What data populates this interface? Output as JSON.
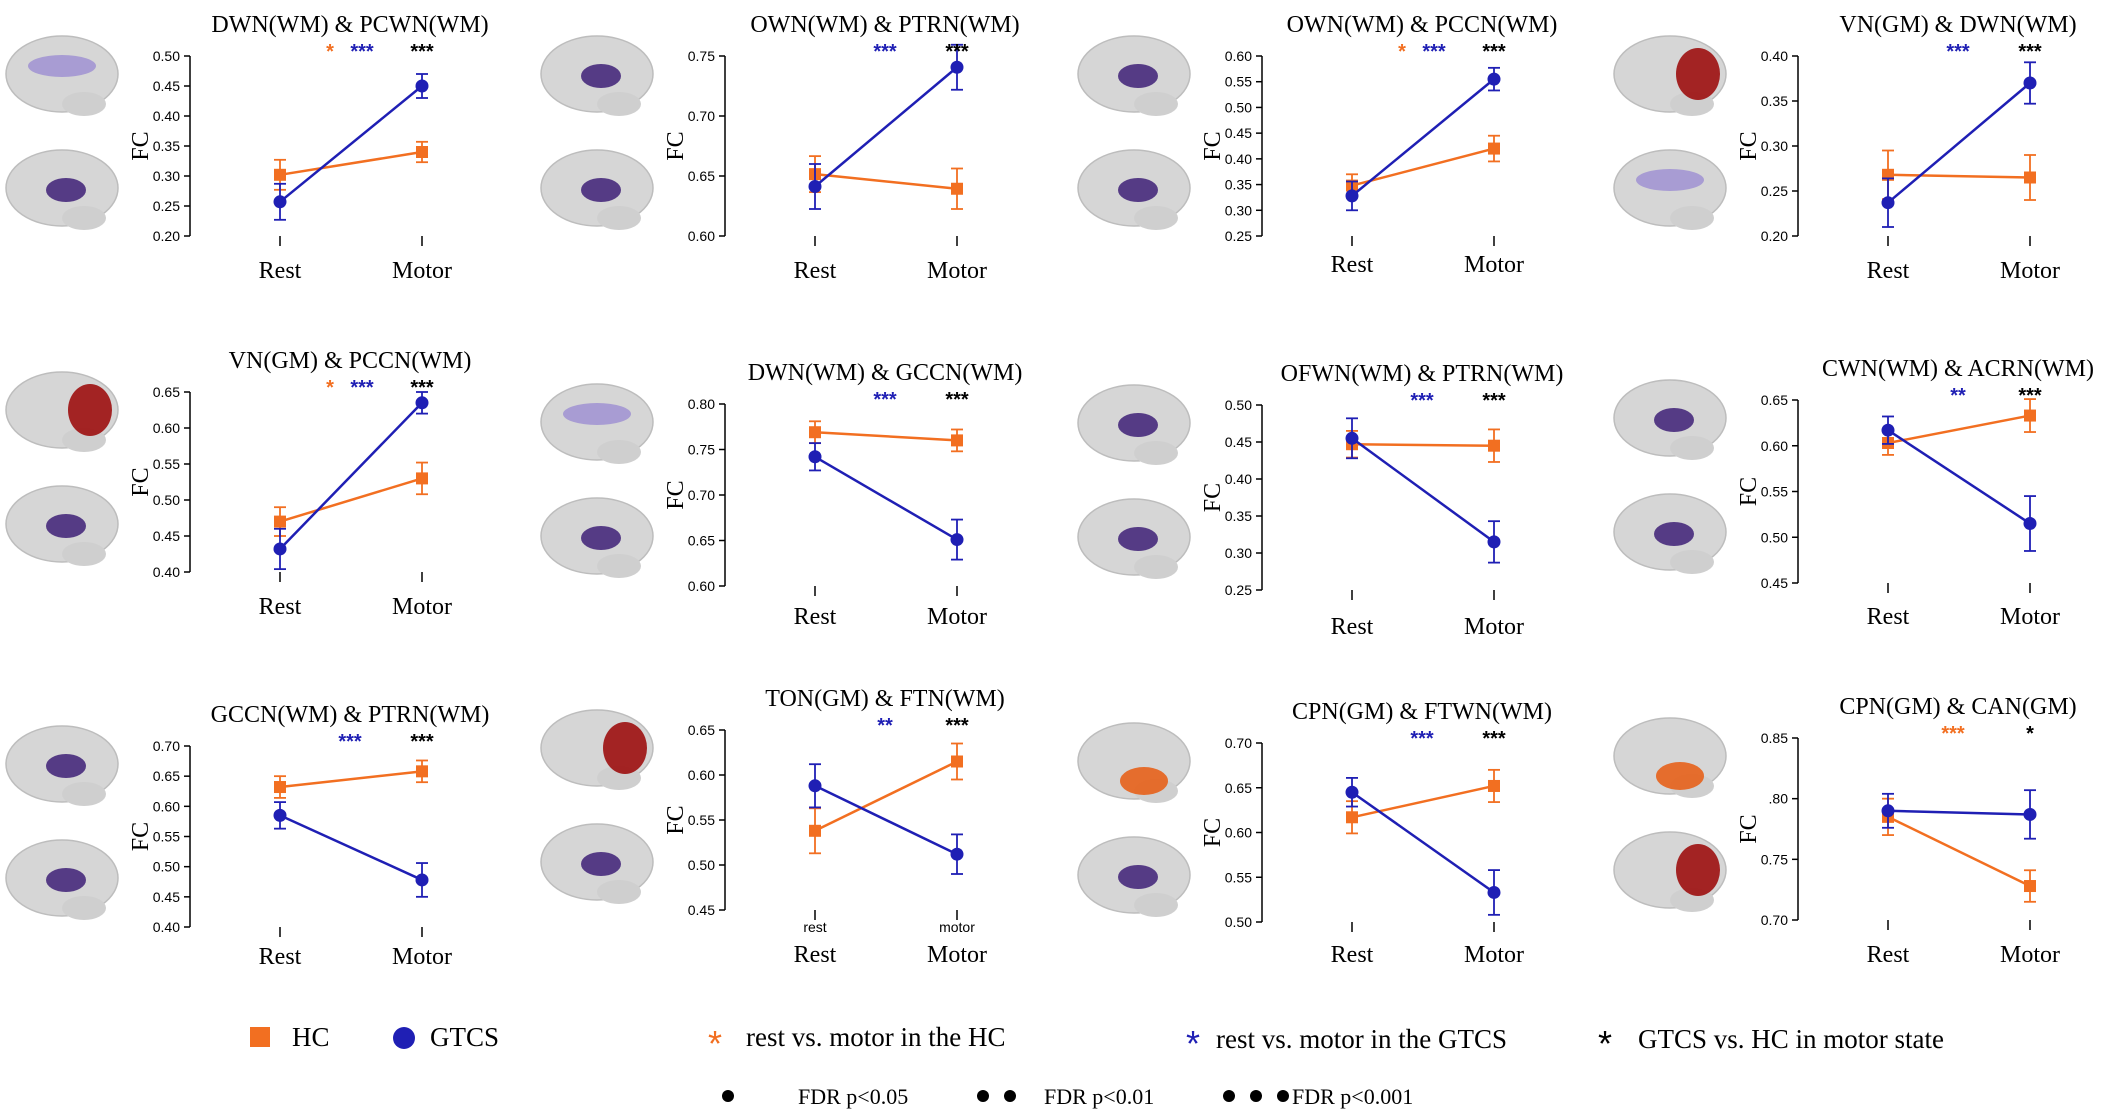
{
  "colors": {
    "hc": "#f26f21",
    "gtcs": "#1f1fb4",
    "sig_black": "#000000",
    "brain_shell": "#c9c9c9",
    "roi_purple_dark": "#4a2e7e",
    "roi_purple_light": "#a497d2",
    "roi_red": "#9e1414",
    "roi_orange": "#e6641e"
  },
  "legend": {
    "hc_label": "HC",
    "gtcs_label": "GTCS",
    "star_hc_label": "rest vs. motor in the HC",
    "star_gtcs_label": "rest vs. motor in the GTCS",
    "star_black_label": "GTCS vs. HC in motor state",
    "star_glyph": "*",
    "dot_glyph": "●",
    "fdr_005": "FDR p<0.05",
    "fdr_001": "FDR p<0.01",
    "fdr_0001": "FDR p<0.001"
  },
  "chart_data": [
    {
      "type": "line",
      "title": "DWN(WM) & PCWN(WM)",
      "ylabel": "FC",
      "categories": [
        "Rest",
        "Motor"
      ],
      "ylim": [
        0.2,
        0.5
      ],
      "yticks": [
        "0.20",
        "0.25",
        "0.30",
        "0.35",
        "0.40",
        "0.45",
        "0.50"
      ],
      "series": [
        {
          "name": "HC",
          "values": [
            0.302,
            0.34
          ],
          "errors": [
            0.025,
            0.017
          ]
        },
        {
          "name": "GTCS",
          "values": [
            0.257,
            0.45
          ],
          "errors": [
            0.03,
            0.02
          ]
        }
      ],
      "annotations": [
        {
          "text": "*",
          "color": "hc"
        },
        {
          "text": "***",
          "color": "gtcs"
        },
        {
          "text": "***",
          "color": "sig_black"
        }
      ],
      "brains": [
        "purple-light",
        "purple-dark"
      ]
    },
    {
      "type": "line",
      "title": "OWN(WM) & PTRN(WM)",
      "ylabel": "FC",
      "categories": [
        "Rest",
        "Motor"
      ],
      "ylim": [
        0.6,
        0.76
      ],
      "yticks": [
        "0.60",
        "0.65",
        "0.70",
        "0.75"
      ],
      "series": [
        {
          "name": "HC",
          "values": [
            0.655,
            0.642
          ],
          "errors": [
            0.016,
            0.018
          ]
        },
        {
          "name": "GTCS",
          "values": [
            0.644,
            0.75
          ],
          "errors": [
            0.02,
            0.02
          ]
        }
      ],
      "annotations": [
        {
          "text": "",
          "color": "hc"
        },
        {
          "text": "***",
          "color": "gtcs"
        },
        {
          "text": "***",
          "color": "sig_black"
        }
      ],
      "brains": [
        "purple-dark",
        "purple-dark"
      ]
    },
    {
      "type": "line",
      "title": "OWN(WM) & PCCN(WM)",
      "ylabel": "FC",
      "categories": [
        "Rest",
        "Motor"
      ],
      "ylim": [
        0.25,
        0.6
      ],
      "yticks": [
        "0.25",
        "0.30",
        "0.35",
        "0.40",
        "0.45",
        "0.50",
        "0.55",
        "0.60"
      ],
      "series": [
        {
          "name": "HC",
          "values": [
            0.348,
            0.42
          ],
          "errors": [
            0.022,
            0.025
          ]
        },
        {
          "name": "GTCS",
          "values": [
            0.328,
            0.555
          ],
          "errors": [
            0.028,
            0.022
          ]
        }
      ],
      "annotations": [
        {
          "text": "*",
          "color": "hc"
        },
        {
          "text": "***",
          "color": "gtcs"
        },
        {
          "text": "***",
          "color": "sig_black"
        }
      ],
      "brains": [
        "purple-dark",
        "purple-dark"
      ]
    },
    {
      "type": "line",
      "title": "VN(GM) & DWN(WM)",
      "ylabel": "FC",
      "categories": [
        "Rest",
        "Motor"
      ],
      "ylim": [
        0.2,
        0.4
      ],
      "yticks": [
        "0.20",
        "0.25",
        "0.30",
        "0.35",
        "0.40"
      ],
      "series": [
        {
          "name": "HC",
          "values": [
            0.268,
            0.265
          ],
          "errors": [
            0.027,
            0.025
          ]
        },
        {
          "name": "GTCS",
          "values": [
            0.237,
            0.37
          ],
          "errors": [
            0.027,
            0.023
          ]
        }
      ],
      "annotations": [
        {
          "text": "",
          "color": "hc"
        },
        {
          "text": "***",
          "color": "gtcs"
        },
        {
          "text": "***",
          "color": "sig_black"
        }
      ],
      "brains": [
        "red",
        "purple-light"
      ]
    },
    {
      "type": "line",
      "title": "VN(GM) & PCCN(WM)",
      "ylabel": "FC",
      "categories": [
        "Rest",
        "Motor"
      ],
      "ylim": [
        0.4,
        0.65
      ],
      "yticks": [
        "0.40",
        "0.45",
        "0.50",
        "0.55",
        "0.60",
        "0.65"
      ],
      "series": [
        {
          "name": "HC",
          "values": [
            0.47,
            0.53
          ],
          "errors": [
            0.02,
            0.022
          ]
        },
        {
          "name": "GTCS",
          "values": [
            0.432,
            0.635
          ],
          "errors": [
            0.028,
            0.015
          ]
        }
      ],
      "annotations": [
        {
          "text": "*",
          "color": "hc"
        },
        {
          "text": "***",
          "color": "gtcs"
        },
        {
          "text": "***",
          "color": "sig_black"
        }
      ],
      "brains": [
        "red",
        "purple-dark"
      ]
    },
    {
      "type": "line",
      "title": "DWN(WM) & GCCN(WM)",
      "ylabel": "FC",
      "categories": [
        "Rest",
        "Motor"
      ],
      "ylim": [
        0.6,
        0.8
      ],
      "yticks": [
        "0.60",
        "0.65",
        "0.70",
        "0.75",
        "0.80"
      ],
      "series": [
        {
          "name": "HC",
          "values": [
            0.769,
            0.76
          ],
          "errors": [
            0.012,
            0.012
          ]
        },
        {
          "name": "GTCS",
          "values": [
            0.742,
            0.651
          ],
          "errors": [
            0.015,
            0.022
          ]
        }
      ],
      "annotations": [
        {
          "text": "",
          "color": "hc"
        },
        {
          "text": "***",
          "color": "gtcs"
        },
        {
          "text": "***",
          "color": "sig_black"
        }
      ],
      "brains": [
        "purple-light",
        "purple-dark"
      ]
    },
    {
      "type": "line",
      "title": "OFWN(WM) & PTRN(WM)",
      "ylabel": "FC",
      "categories": [
        "Rest",
        "Motor"
      ],
      "ylim": [
        0.25,
        0.5
      ],
      "yticks": [
        "0.25",
        "0.30",
        "0.35",
        "0.40",
        "0.45",
        "0.50"
      ],
      "series": [
        {
          "name": "HC",
          "values": [
            0.447,
            0.445
          ],
          "errors": [
            0.018,
            0.022
          ]
        },
        {
          "name": "GTCS",
          "values": [
            0.455,
            0.315
          ],
          "errors": [
            0.027,
            0.028
          ]
        }
      ],
      "annotations": [
        {
          "text": "",
          "color": "hc"
        },
        {
          "text": "***",
          "color": "gtcs"
        },
        {
          "text": "***",
          "color": "sig_black"
        }
      ],
      "brains": [
        "purple-dark",
        "purple-dark"
      ]
    },
    {
      "type": "line",
      "title": "CWN(WM) & ACRN(WM)",
      "ylabel": "FC",
      "categories": [
        "Rest",
        "Motor"
      ],
      "ylim": [
        0.45,
        0.65
      ],
      "yticks": [
        "0.45",
        "0.50",
        "0.55",
        "0.60",
        "0.65"
      ],
      "series": [
        {
          "name": "HC",
          "values": [
            0.603,
            0.633
          ],
          "errors": [
            0.013,
            0.018
          ]
        },
        {
          "name": "GTCS",
          "values": [
            0.617,
            0.515
          ],
          "errors": [
            0.015,
            0.03
          ]
        }
      ],
      "annotations": [
        {
          "text": "",
          "color": "hc"
        },
        {
          "text": "**",
          "color": "gtcs"
        },
        {
          "text": "***",
          "color": "sig_black"
        }
      ],
      "brains": [
        "purple-dark",
        "purple-dark"
      ]
    },
    {
      "type": "line",
      "title": "GCCN(WM) & PTRN(WM)",
      "ylabel": "FC",
      "categories": [
        "Rest",
        "Motor"
      ],
      "ylim": [
        0.4,
        0.7
      ],
      "yticks": [
        "0.40",
        "0.45",
        "0.50",
        "0.55",
        "0.60",
        "0.65",
        "0.70"
      ],
      "series": [
        {
          "name": "HC",
          "values": [
            0.632,
            0.658
          ],
          "errors": [
            0.018,
            0.018
          ]
        },
        {
          "name": "GTCS",
          "values": [
            0.585,
            0.478
          ],
          "errors": [
            0.022,
            0.028
          ]
        }
      ],
      "annotations": [
        {
          "text": "",
          "color": "hc"
        },
        {
          "text": "***",
          "color": "gtcs"
        },
        {
          "text": "***",
          "color": "sig_black"
        }
      ],
      "brains": [
        "purple-dark",
        "purple-dark"
      ]
    },
    {
      "type": "line",
      "title": "TON(GM) & FTN(WM)",
      "ylabel": "FC",
      "categories": [
        "rest",
        "motor"
      ],
      "categories_below": [
        "Rest",
        "Motor"
      ],
      "ylim": [
        0.45,
        0.65
      ],
      "yticks": [
        "0.45",
        "0.50",
        "0.55",
        "0.60",
        "0.65"
      ],
      "series": [
        {
          "name": "HC",
          "values": [
            0.538,
            0.615
          ],
          "errors": [
            0.025,
            0.02
          ]
        },
        {
          "name": "GTCS",
          "values": [
            0.588,
            0.512
          ],
          "errors": [
            0.024,
            0.022
          ]
        }
      ],
      "annotations": [
        {
          "text": "",
          "color": "hc"
        },
        {
          "text": "**",
          "color": "gtcs"
        },
        {
          "text": "***",
          "color": "sig_black"
        }
      ],
      "brains": [
        "red",
        "purple-dark"
      ]
    },
    {
      "type": "line",
      "title": "CPN(GM) & FTWN(WM)",
      "ylabel": "FC",
      "categories": [
        "Rest",
        "Motor"
      ],
      "ylim": [
        0.5,
        0.7
      ],
      "yticks": [
        "0.50",
        "0.55",
        "0.60",
        "0.65",
        "0.70"
      ],
      "series": [
        {
          "name": "HC",
          "values": [
            0.617,
            0.652
          ],
          "errors": [
            0.018,
            0.018
          ]
        },
        {
          "name": "GTCS",
          "values": [
            0.645,
            0.533
          ],
          "errors": [
            0.016,
            0.025
          ]
        }
      ],
      "annotations": [
        {
          "text": "",
          "color": "hc"
        },
        {
          "text": "***",
          "color": "gtcs"
        },
        {
          "text": "***",
          "color": "sig_black"
        }
      ],
      "brains": [
        "orange",
        "purple-dark"
      ]
    },
    {
      "type": "line",
      "title": "CPN(GM) & CAN(GM)",
      "ylabel": "FC",
      "categories": [
        "Rest",
        "Motor"
      ],
      "ylim": [
        0.7,
        0.85
      ],
      "yticks": [
        "0.70",
        "0.75",
        ".80",
        "0.85"
      ],
      "series": [
        {
          "name": "HC",
          "values": [
            0.785,
            0.728
          ],
          "errors": [
            0.015,
            0.013
          ]
        },
        {
          "name": "GTCS",
          "values": [
            0.79,
            0.787
          ],
          "errors": [
            0.014,
            0.02
          ]
        }
      ],
      "annotations": [
        {
          "text": "***",
          "color": "hc"
        },
        {
          "text": "",
          "color": "gtcs"
        },
        {
          "text": "*",
          "color": "sig_black"
        }
      ],
      "brains": [
        "orange",
        "red"
      ]
    }
  ]
}
